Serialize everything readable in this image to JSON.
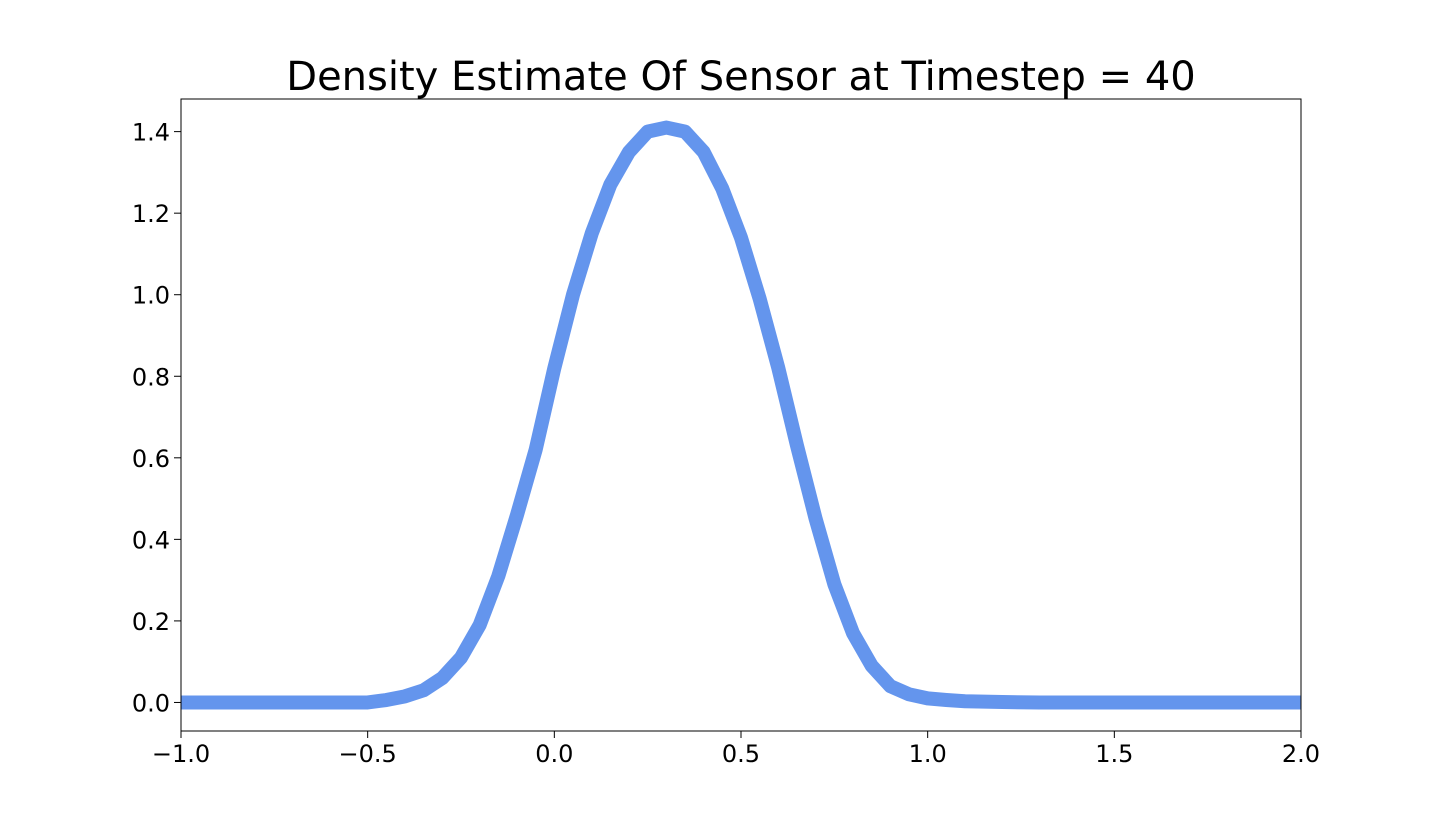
{
  "chart_data": {
    "type": "line",
    "title": "Density Estimate Of Sensor at Timestep = 40",
    "xlabel": "",
    "ylabel": "",
    "xlim": [
      -1.0,
      2.0
    ],
    "ylim": [
      -0.07,
      1.48
    ],
    "grid": false,
    "x_ticks": [
      {
        "value": -1.0,
        "label": "−1.0"
      },
      {
        "value": -0.5,
        "label": "−0.5"
      },
      {
        "value": 0.0,
        "label": "0.0"
      },
      {
        "value": 0.5,
        "label": "0.5"
      },
      {
        "value": 1.0,
        "label": "1.0"
      },
      {
        "value": 1.5,
        "label": "1.5"
      },
      {
        "value": 2.0,
        "label": "2.0"
      }
    ],
    "y_ticks": [
      {
        "value": 0.0,
        "label": "0.0"
      },
      {
        "value": 0.2,
        "label": "0.2"
      },
      {
        "value": 0.4,
        "label": "0.4"
      },
      {
        "value": 0.6,
        "label": "0.6"
      },
      {
        "value": 0.8,
        "label": "0.8"
      },
      {
        "value": 1.0,
        "label": "1.0"
      },
      {
        "value": 1.2,
        "label": "1.2"
      },
      {
        "value": 1.4,
        "label": "1.4"
      }
    ],
    "series": [
      {
        "color": "#6495ED",
        "x": [
          -1.0,
          -0.8,
          -0.6,
          -0.5,
          -0.45,
          -0.4,
          -0.35,
          -0.3,
          -0.25,
          -0.2,
          -0.15,
          -0.1,
          -0.05,
          0.0,
          0.05,
          0.1,
          0.15,
          0.2,
          0.25,
          0.3,
          0.35,
          0.4,
          0.45,
          0.5,
          0.55,
          0.6,
          0.65,
          0.7,
          0.75,
          0.8,
          0.85,
          0.9,
          0.95,
          1.0,
          1.05,
          1.1,
          1.2,
          1.3,
          1.5,
          1.75,
          2.0
        ],
        "y": [
          0.0,
          0.0,
          0.0,
          0.0,
          0.006,
          0.015,
          0.03,
          0.06,
          0.11,
          0.19,
          0.31,
          0.46,
          0.62,
          0.82,
          1.0,
          1.15,
          1.27,
          1.35,
          1.4,
          1.41,
          1.4,
          1.35,
          1.26,
          1.14,
          0.99,
          0.82,
          0.63,
          0.45,
          0.29,
          0.17,
          0.09,
          0.04,
          0.02,
          0.01,
          0.006,
          0.003,
          0.001,
          0.0,
          0.0,
          0.0,
          0.0
        ]
      }
    ]
  }
}
